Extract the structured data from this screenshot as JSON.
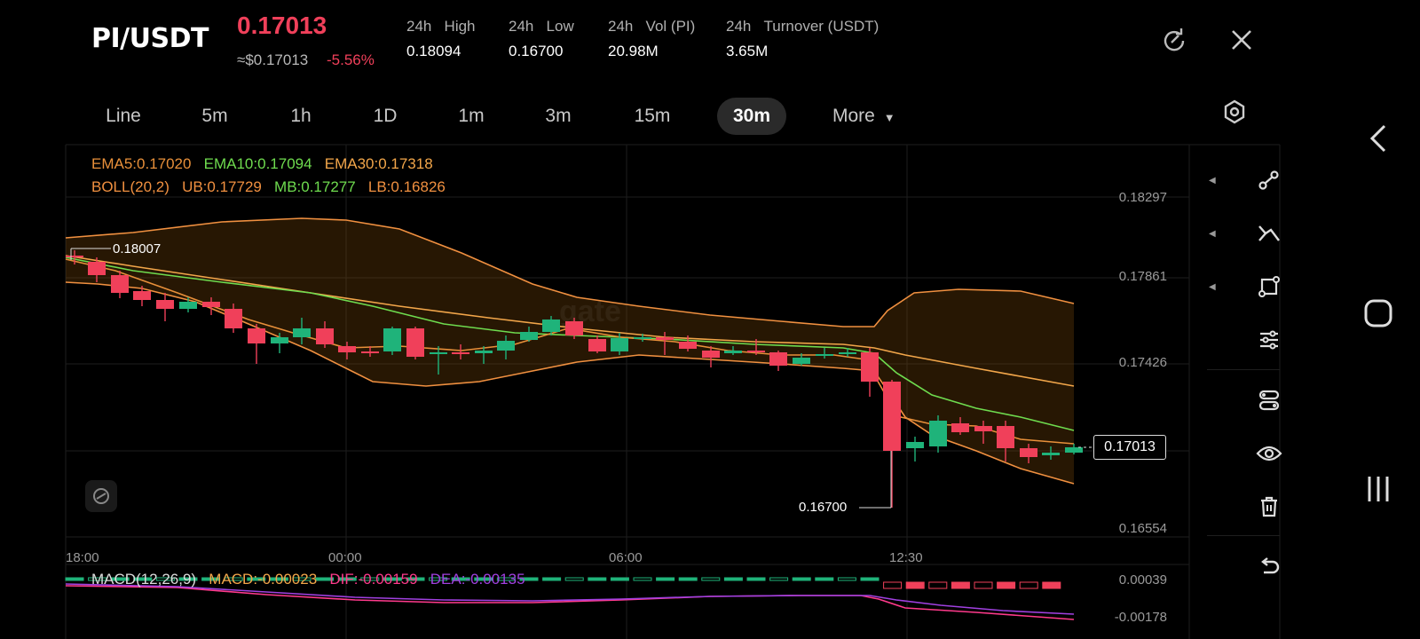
{
  "header": {
    "pair": "PI/USDT",
    "price": "0.17013",
    "usd_approx": "≈$0.17013",
    "change": "-5.56%",
    "stats": [
      {
        "label1": "24h",
        "label2": "High",
        "value": "0.18094"
      },
      {
        "label1": "24h",
        "label2": "Low",
        "value": "0.16700"
      },
      {
        "label1": "24h",
        "label2": "Vol (PI)",
        "value": "20.98M"
      },
      {
        "label1": "24h",
        "label2": "Turnover (USDT)",
        "value": "3.65M"
      }
    ]
  },
  "timeframes": [
    "Line",
    "5m",
    "1h",
    "1D",
    "1m",
    "3m",
    "15m",
    "30m",
    "More"
  ],
  "active_timeframe": "30m",
  "indicators": {
    "ema5": "EMA5:0.17020",
    "ema10": "EMA10:0.17094",
    "ema30": "EMA30:0.17318",
    "boll": "BOLL(20,2)",
    "ub": "UB:0.17729",
    "mb": "MB:0.17277",
    "lb": "LB:0.16826"
  },
  "macd": {
    "name": "MACD(12,26,9)",
    "macd": "MACD:-0.00023",
    "dif": "DIF:-0.00159",
    "dea": "DEA:-0.00135",
    "y_top": "0.00039",
    "y_bottom": "-0.00178"
  },
  "chart_data": {
    "type": "candlestick",
    "y_labels": [
      "0.18297",
      "0.17861",
      "0.17426",
      "0.16554"
    ],
    "x_labels": [
      "18:00",
      "00:00",
      "06:00",
      "12:30"
    ],
    "high_marker": "0.18007",
    "low_marker": "0.16700",
    "last_price_marker": "0.17013",
    "watermark": "gate",
    "colors": {
      "up": "#1fb37a",
      "down": "#f0405a",
      "ema5": "#e8903a",
      "ema10": "#6fdc4f",
      "ema30": "#f2a64a",
      "boll": "#f09040",
      "macd_dif": "#ff3a8c",
      "macd_dea": "#a040e0"
    }
  },
  "toolbar_icons": [
    "fork-arrow-icon",
    "line-tool-icon",
    "shape-tool-icon",
    "sliders-icon",
    "indicators-icon",
    "eye-icon",
    "trash-icon",
    "undo-icon"
  ]
}
